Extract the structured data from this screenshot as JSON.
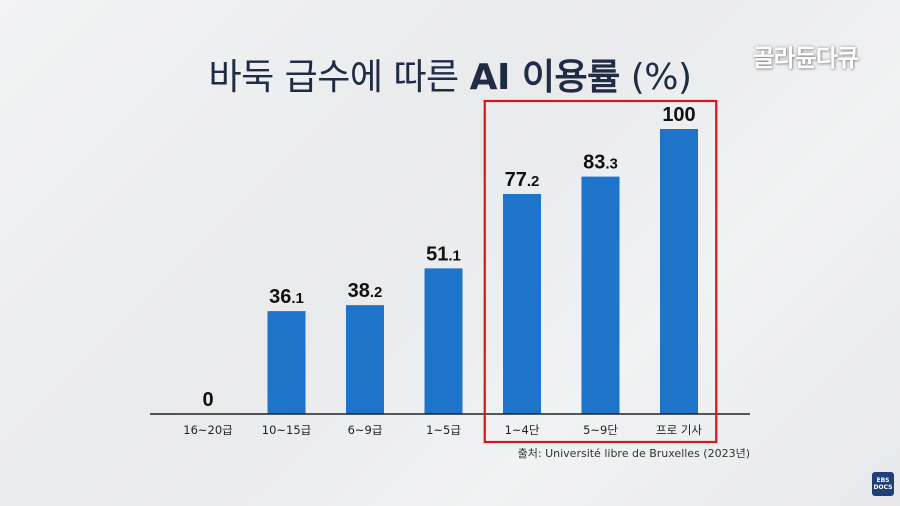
{
  "title": {
    "normal": "바둑 급수에 따른 ",
    "bold": "AI 이용률",
    "unit": " (%)"
  },
  "brand": "골라듄다큐",
  "source": "출처: Université libre de Bruxelles (2023년)",
  "logo": {
    "line1": "EBS",
    "line2": "DOCS"
  },
  "colors": {
    "bar": "#1e74c9",
    "highlight": "#d0191c",
    "axis": "#222222"
  },
  "chart_data": {
    "type": "bar",
    "title": "바둑 급수에 따른 AI 이용률 (%)",
    "categories": [
      "16~20급",
      "10~15급",
      "6~9급",
      "1~5급",
      "1~4단",
      "5~9단",
      "프로 기사"
    ],
    "values": [
      0,
      36.1,
      38.2,
      51.1,
      77.2,
      83.3,
      100
    ],
    "value_labels": [
      {
        "main": "0",
        "dec": ""
      },
      {
        "main": "36",
        "dec": ".1"
      },
      {
        "main": "38",
        "dec": ".2"
      },
      {
        "main": "51",
        "dec": ".1"
      },
      {
        "main": "77",
        "dec": ".2"
      },
      {
        "main": "83",
        "dec": ".3"
      },
      {
        "main": "100",
        "dec": ""
      }
    ],
    "ylim": [
      0,
      100
    ],
    "highlighted_categories": [
      "1~4단",
      "5~9단",
      "프로 기사"
    ],
    "grid": false,
    "legend": "none"
  }
}
